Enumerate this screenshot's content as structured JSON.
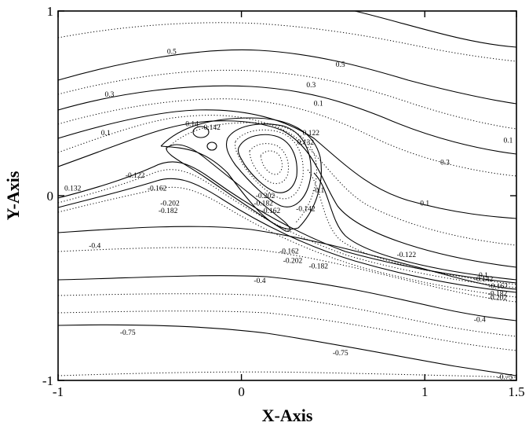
{
  "chart_data": {
    "type": "contour",
    "xlabel": "X-Axis",
    "ylabel": "Y-Axis",
    "xlim": [
      -1,
      1.5
    ],
    "ylim": [
      -1,
      1
    ],
    "x_ticks": [
      {
        "value": -1,
        "label": "-1"
      },
      {
        "value": 0,
        "label": "0"
      },
      {
        "value": 1,
        "label": "1"
      },
      {
        "value": 1.5,
        "label": "1.5"
      }
    ],
    "y_ticks": [
      {
        "value": -1,
        "label": "-1"
      },
      {
        "value": 0,
        "label": "0"
      },
      {
        "value": 1,
        "label": "1"
      }
    ],
    "contour_labels": [
      {
        "text": "0.5",
        "x": -0.38,
        "y": 0.78
      },
      {
        "text": "0.5",
        "x": 0.54,
        "y": 0.71
      },
      {
        "text": "0.3",
        "x": -0.72,
        "y": 0.55
      },
      {
        "text": "0.3",
        "x": 0.38,
        "y": 0.6
      },
      {
        "text": "0.3",
        "x": 1.11,
        "y": 0.18
      },
      {
        "text": "0.1",
        "x": 0.42,
        "y": 0.5
      },
      {
        "text": "0.1",
        "x": -0.74,
        "y": 0.34
      },
      {
        "text": "0.1",
        "x": 1.48,
        "y": 0.3
      },
      {
        "text": "0.1",
        "x": 1.0,
        "y": -0.04
      },
      {
        "text": "0.1",
        "x": 1.32,
        "y": -0.43
      },
      {
        "text": "0.14",
        "x": -0.27,
        "y": 0.39
      },
      {
        "text": "0.142",
        "x": -0.16,
        "y": 0.37
      },
      {
        "text": "0.122",
        "x": 0.38,
        "y": 0.34
      },
      {
        "text": "0.132",
        "x": 0.35,
        "y": 0.29
      },
      {
        "text": "-0.122",
        "x": -0.58,
        "y": 0.11
      },
      {
        "text": "-0.162",
        "x": -0.46,
        "y": 0.04
      },
      {
        "text": "-0.182",
        "x": -0.4,
        "y": -0.08
      },
      {
        "text": "-0.202",
        "x": -0.39,
        "y": -0.04
      },
      {
        "text": "-0.1",
        "x": 0.42,
        "y": 0.03
      },
      {
        "text": "-0.142",
        "x": 0.35,
        "y": -0.07
      },
      {
        "text": "-0.162",
        "x": 0.16,
        "y": -0.08
      },
      {
        "text": "-0.202",
        "x": 0.13,
        "y": 0.0
      },
      {
        "text": "-0.182",
        "x": 0.12,
        "y": -0.04
      },
      {
        "text": "-0.162",
        "x": 0.26,
        "y": -0.3
      },
      {
        "text": "-0.202",
        "x": 0.28,
        "y": -0.35
      },
      {
        "text": "-0.182",
        "x": 0.42,
        "y": -0.38
      },
      {
        "text": "-0.122",
        "x": 0.9,
        "y": -0.32
      },
      {
        "text": "-0.142",
        "x": 1.32,
        "y": -0.45
      },
      {
        "text": "-0.162",
        "x": 1.4,
        "y": -0.49
      },
      {
        "text": "-0.182",
        "x": 1.45,
        "y": -0.53
      },
      {
        "text": "-0.202",
        "x": 1.45,
        "y": -0.55
      },
      {
        "text": "0.132",
        "x": -0.92,
        "y": 0.04
      },
      {
        "text": "-0.4",
        "x": -0.8,
        "y": -0.27
      },
      {
        "text": "-0.4",
        "x": 0.1,
        "y": -0.46
      },
      {
        "text": "-0.4",
        "x": 1.3,
        "y": -0.67
      },
      {
        "text": "-0.75",
        "x": -0.62,
        "y": -0.74
      },
      {
        "text": "-0.75",
        "x": 0.54,
        "y": -0.85
      },
      {
        "text": "-0.75",
        "x": 1.48,
        "y": -0.98
      }
    ]
  }
}
